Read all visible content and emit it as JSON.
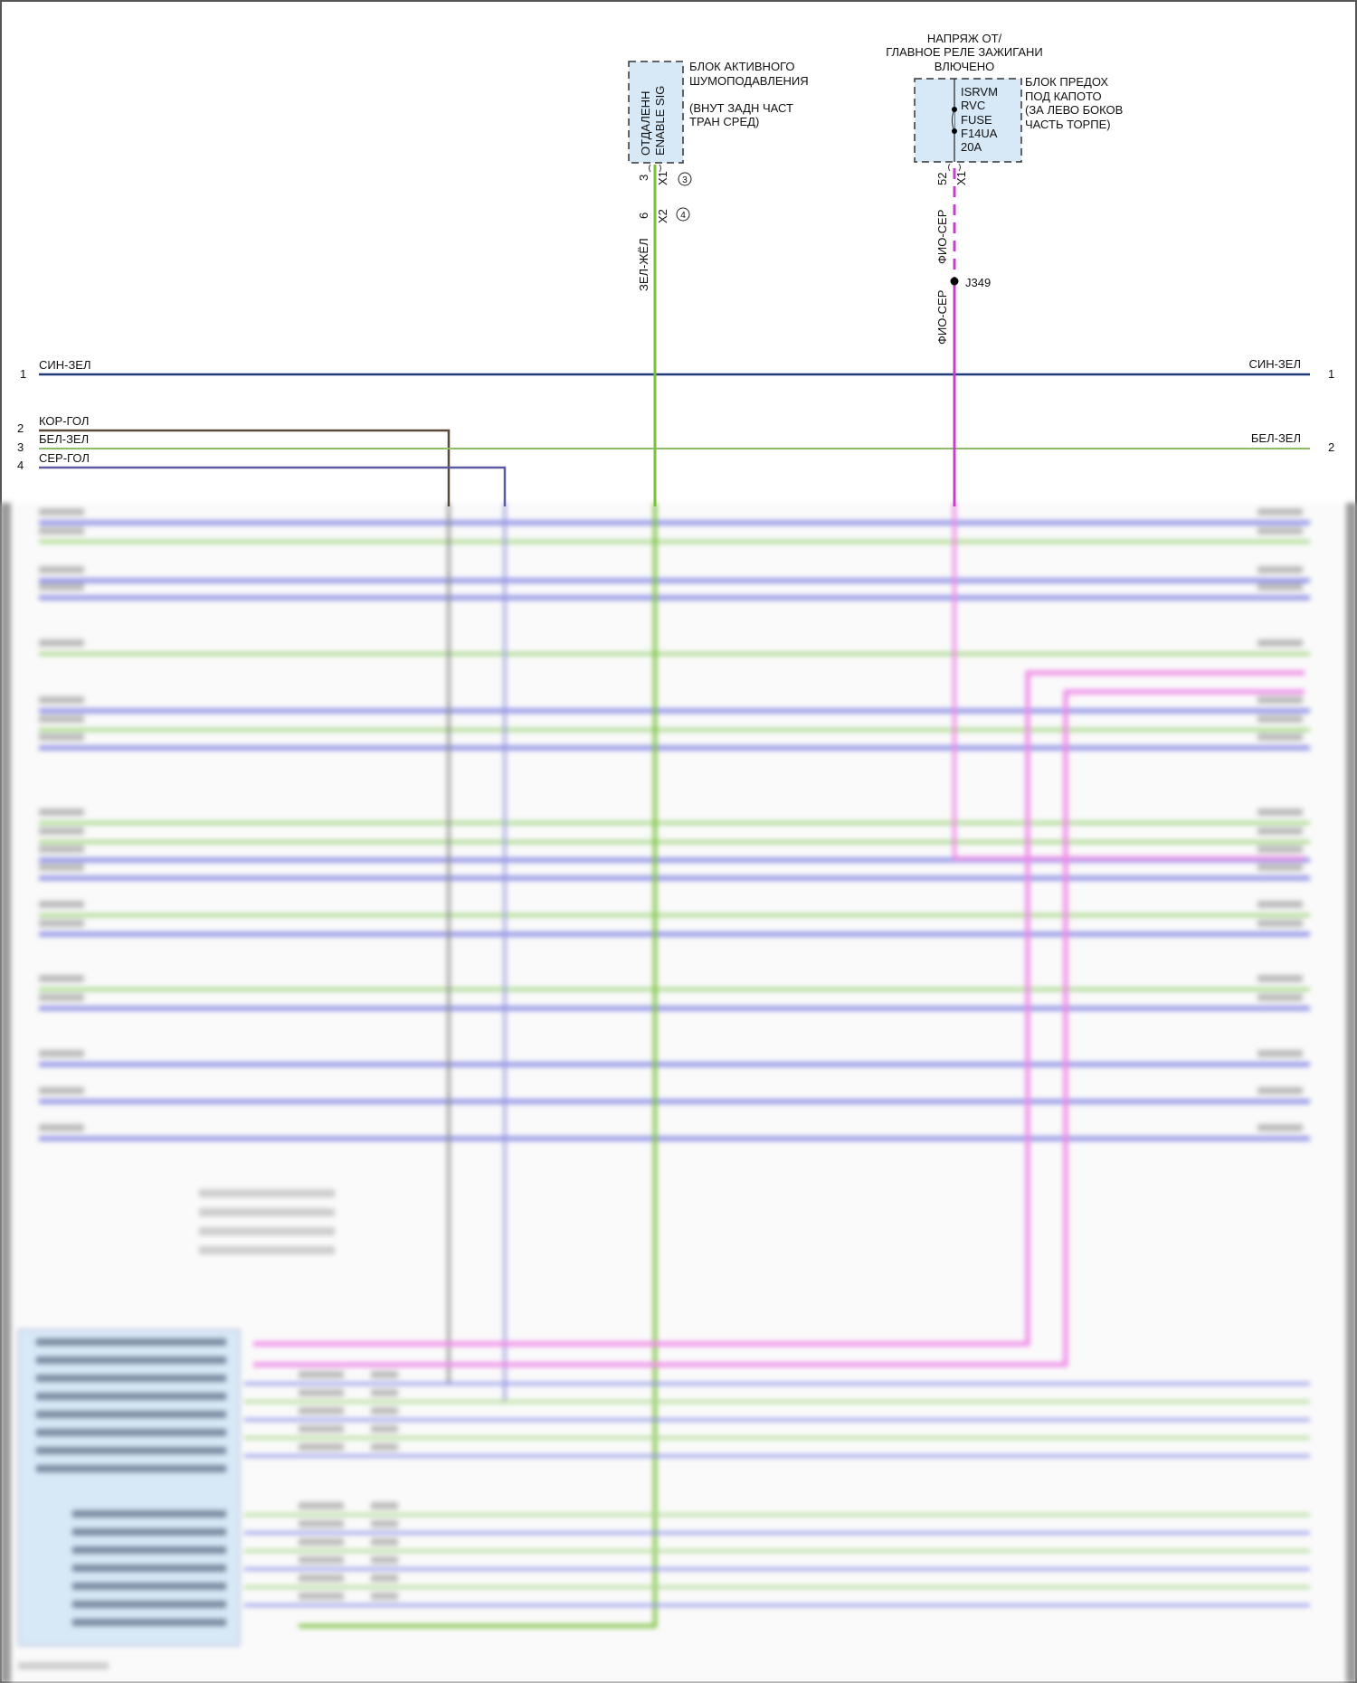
{
  "top_note": {
    "lines": [
      "НАПРЯЖ ОТ/",
      "ГЛАВНОЕ РЕЛЕ ЗАЖИГАНИ",
      "ВЛЮЧЕНО"
    ]
  },
  "anc_module": {
    "title_lines": [
      "БЛОК АКТИВНОГО",
      "ШУМОПОДАВЛЕНИЯ"
    ],
    "location_lines": [
      "(ВНУТ ЗАДН ЧАСТ",
      "ТРАН СРЕД)"
    ],
    "pin_labels": [
      "ОТДАЛЕНН",
      "ENABLE SIG"
    ],
    "connector1": {
      "pin": "3",
      "name": "X1",
      "ref": "3"
    },
    "connector2": {
      "pin": "6",
      "name": "X2",
      "ref": "4"
    },
    "wire_color": "ЗЕЛ-ЖЁЛ"
  },
  "fuse_block": {
    "title_lines": [
      "БЛОК ПРЕДОХ",
      "ПОД КАПОТО",
      "(ЗА ЛЕВО БОКОВ",
      "ЧАСТЬ ТОРПЕ)"
    ],
    "fuse_lines": [
      "ISRVM",
      "RVC",
      "FUSE",
      "F14UA",
      "20A"
    ],
    "connector": {
      "pin": "52",
      "name": "X1"
    },
    "wire_color_1": "ФИО-СЕР",
    "splice": "J349",
    "wire_color_2": "ФИО-СЕР"
  },
  "left_wires": [
    {
      "pin": "1",
      "color_name": "СИН-ЗЕЛ"
    },
    {
      "pin": "2",
      "color_name": "КОР-ГОЛ"
    },
    {
      "pin": "3",
      "color_name": "БЕЛ-ЗЕЛ"
    },
    {
      "pin": "4",
      "color_name": "СЕР-ГОЛ"
    }
  ],
  "right_wires": [
    {
      "pin": "1",
      "color_name": "СИН-ЗЕЛ"
    },
    {
      "pin": "2",
      "color_name": "БЕЛ-ЗЕЛ"
    }
  ],
  "colors": {
    "blue_green": "#1f3b7a",
    "brown_blue": "#5a4a3a",
    "white_green": "#8dbd6a",
    "gray_blue": "#5c5aa0",
    "green_yellow": "#7ac13a",
    "violet_gray": "#c93ccf",
    "module_fill": "#d7e8f7",
    "blurred_blue": "#8c8ee6",
    "blurred_green": "#a8d88a",
    "blurred_pink": "#f08ae8"
  }
}
